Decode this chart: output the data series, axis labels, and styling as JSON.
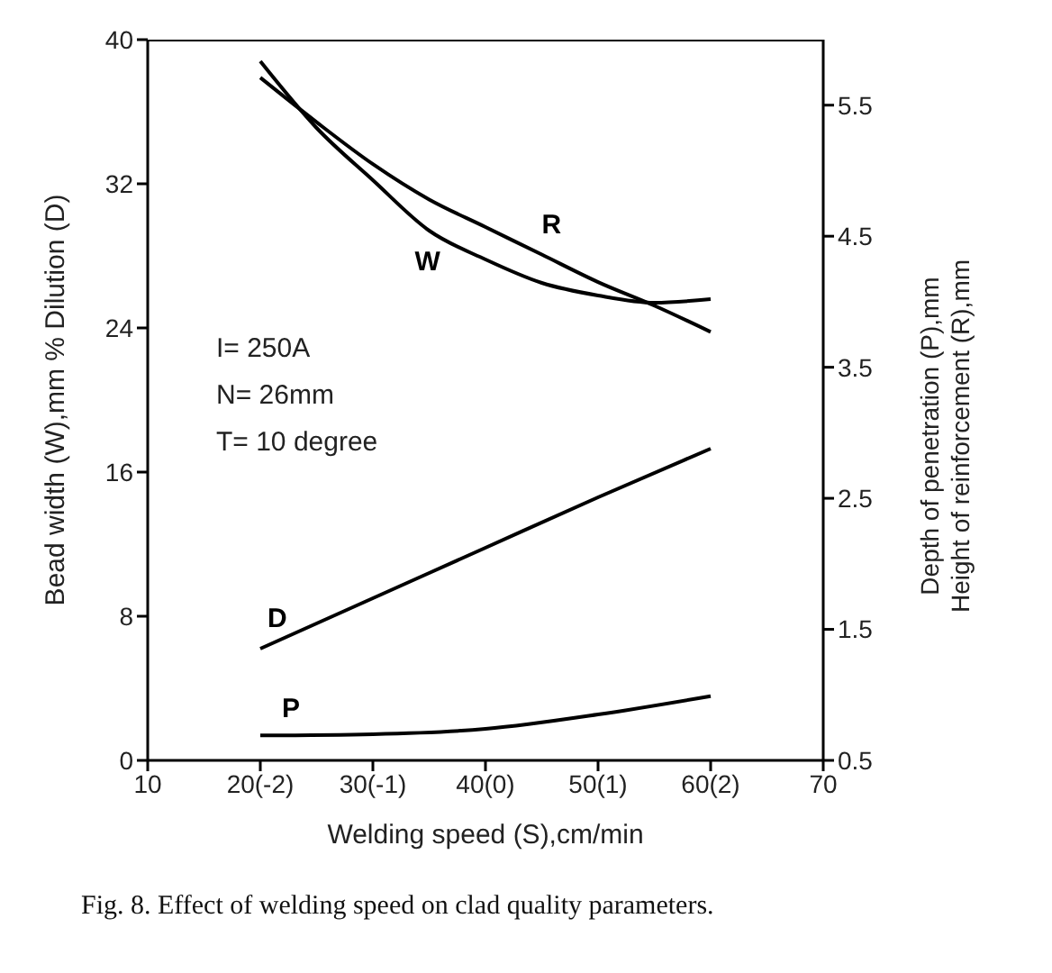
{
  "chart_data": {
    "type": "line",
    "xlabel": "Welding speed (S),cm/min",
    "ylabel": "Bead width (W),mm % Dilution (D)",
    "y2label": "Depth of penetration (P),mm\nHeight of reinforcement (R),mm",
    "annotations": [
      "I= 250A",
      "N= 26mm",
      "T= 10 degree",
      "Fig. 8. Effect of welding speed on clad quality parameters."
    ],
    "xlim": [
      10,
      70
    ],
    "xticks": [
      10,
      {
        "value": 20,
        "label": "20(-2)"
      },
      {
        "value": 30,
        "label": "30(-1)"
      },
      {
        "value": 40,
        "label": "40(0)"
      },
      {
        "value": 50,
        "label": "50(1)"
      },
      {
        "value": 60,
        "label": "60(2)"
      },
      70
    ],
    "ylim": [
      0,
      40
    ],
    "yticks": [
      0,
      8,
      16,
      24,
      32,
      40
    ],
    "y2lim": [
      0.5,
      6
    ],
    "y2ticks": [
      0.5,
      1.5,
      2.5,
      3.5,
      4.5,
      5.5
    ],
    "grid": false,
    "legend": false,
    "marker": "none",
    "line_style": "solid",
    "series": [
      {
        "name": "W",
        "color": "#000000",
        "x": [
          20,
          25,
          30,
          35,
          40,
          45,
          50,
          55,
          60
        ],
        "values": [
          38.8,
          35.1,
          32.2,
          29.4,
          27.8,
          26.5,
          25.8,
          25.4,
          25.6
        ]
      },
      {
        "name": "R",
        "color": "#000000",
        "axis": "y2",
        "x": [
          20,
          25,
          30,
          35,
          40,
          45,
          50,
          55,
          60
        ],
        "values": [
          5.71,
          5.37,
          5.05,
          4.78,
          4.57,
          4.36,
          4.15,
          3.97,
          3.77
        ]
      },
      {
        "name": "D",
        "color": "#000000",
        "x": [
          20,
          30,
          40,
          50,
          60
        ],
        "values": [
          6.2,
          9,
          11.8,
          14.6,
          17.3
        ]
      },
      {
        "name": "P",
        "color": "#000000",
        "axis": "y2",
        "x": [
          20,
          30,
          40,
          50,
          60
        ],
        "values": [
          0.69,
          0.7,
          0.74,
          0.85,
          0.99
        ]
      }
    ]
  }
}
